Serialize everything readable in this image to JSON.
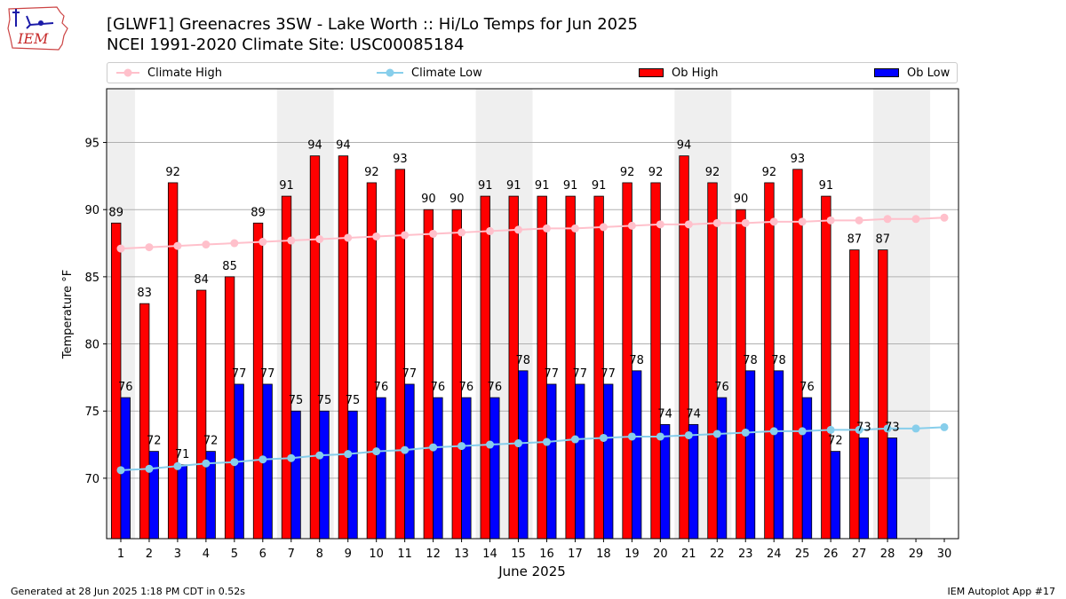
{
  "header": {
    "title_line1": "[GLWF1] Greenacres 3SW - Lake Worth :: Hi/Lo Temps for Jun 2025",
    "title_line2": "NCEI 1991-2020 Climate Site: USC00085184",
    "logo_text": "IEM"
  },
  "legend": {
    "placement": "top",
    "items": [
      {
        "label": "Climate High",
        "color": "#ffc0cb",
        "kind": "line"
      },
      {
        "label": "Climate Low",
        "color": "#87ceeb",
        "kind": "line"
      },
      {
        "label": "Ob High",
        "color": "#ff0000",
        "kind": "bar"
      },
      {
        "label": "Ob Low",
        "color": "#0000ff",
        "kind": "bar"
      }
    ]
  },
  "footer": {
    "left": "Generated at 28 Jun 2025 1:18 PM CDT in 0.52s",
    "right": "IEM Autoplot App #17"
  },
  "chart_data": {
    "type": "bar",
    "xlabel": "June 2025",
    "ylabel": "Temperature °F",
    "ylim": [
      65.5,
      99
    ],
    "yticks": [
      70,
      75,
      80,
      85,
      90,
      95
    ],
    "grid": "horizontal",
    "days": [
      1,
      2,
      3,
      4,
      5,
      6,
      7,
      8,
      9,
      10,
      11,
      12,
      13,
      14,
      15,
      16,
      17,
      18,
      19,
      20,
      21,
      22,
      23,
      24,
      25,
      26,
      27,
      28,
      29,
      30
    ],
    "weekend_shading": [
      [
        1,
        1
      ],
      [
        7,
        8
      ],
      [
        14,
        15
      ],
      [
        21,
        22
      ],
      [
        28,
        29
      ]
    ],
    "series": [
      {
        "name": "Ob High",
        "color": "#ff0000",
        "values": [
          89,
          83,
          92,
          84,
          85,
          89,
          91,
          94,
          94,
          92,
          93,
          90,
          90,
          91,
          91,
          91,
          91,
          91,
          92,
          92,
          94,
          92,
          90,
          92,
          93,
          91,
          87,
          87
        ]
      },
      {
        "name": "Ob Low",
        "color": "#0000ff",
        "values": [
          76,
          72,
          71,
          72,
          77,
          77,
          75,
          75,
          75,
          76,
          77,
          76,
          76,
          76,
          78,
          77,
          77,
          77,
          78,
          74,
          74,
          76,
          78,
          78,
          76,
          72,
          73,
          73
        ]
      },
      {
        "name": "Climate High",
        "color": "#ffc0cb",
        "values": [
          87.1,
          87.2,
          87.3,
          87.4,
          87.5,
          87.6,
          87.7,
          87.8,
          87.9,
          88.0,
          88.1,
          88.2,
          88.3,
          88.4,
          88.5,
          88.6,
          88.6,
          88.7,
          88.8,
          88.9,
          88.9,
          89.0,
          89.0,
          89.1,
          89.1,
          89.2,
          89.2,
          89.3,
          89.3,
          89.4
        ]
      },
      {
        "name": "Climate Low",
        "color": "#87ceeb",
        "values": [
          70.6,
          70.7,
          70.9,
          71.1,
          71.2,
          71.4,
          71.5,
          71.7,
          71.8,
          72.0,
          72.1,
          72.3,
          72.4,
          72.5,
          72.6,
          72.7,
          72.9,
          73.0,
          73.1,
          73.1,
          73.2,
          73.3,
          73.4,
          73.5,
          73.5,
          73.6,
          73.6,
          73.7,
          73.7,
          73.8
        ]
      }
    ]
  }
}
